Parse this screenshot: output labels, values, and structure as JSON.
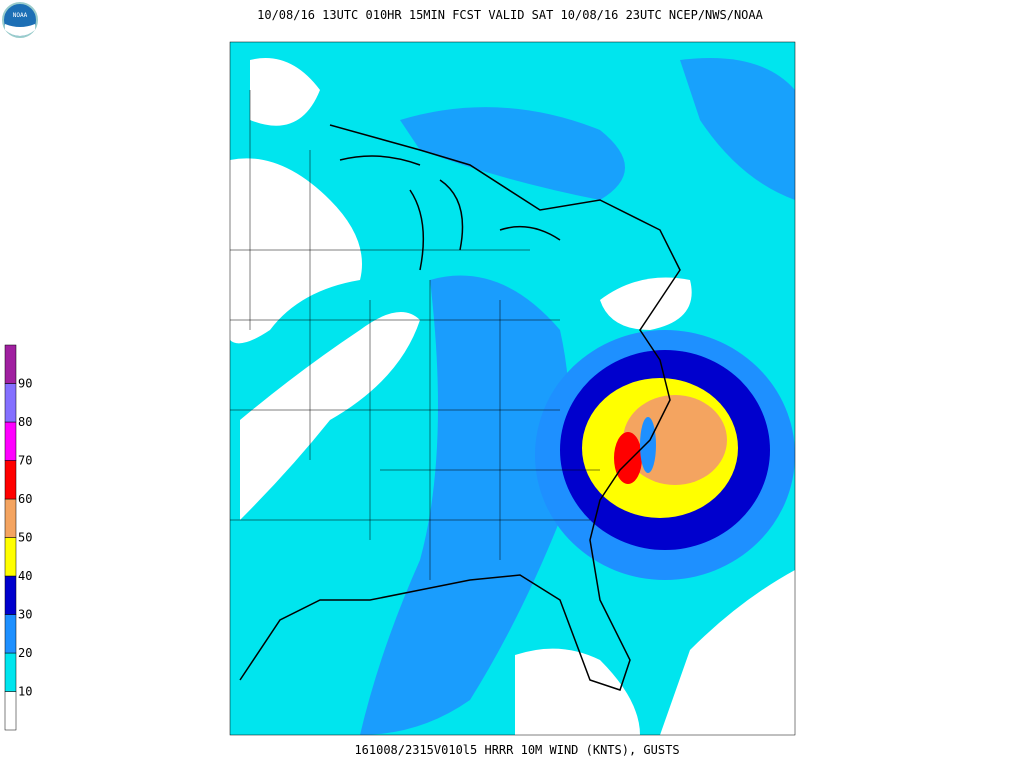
{
  "header": {
    "title": "10/08/16 13UTC  010HR 15MIN FCST VALID SAT 10/08/16 23UTC  NCEP/NWS/NOAA",
    "logo": "NOAA"
  },
  "footer": {
    "caption": "161008/2315V010l5 HRRR 10M WIND (KNTS), GUSTS"
  },
  "colorbar": {
    "colors": [
      "#ffffff",
      "#00e5ee",
      "#1e90ff",
      "#0000cd",
      "#ffff00",
      "#f4a460",
      "#ff0000",
      "#ff00ff",
      "#8470ff",
      "#a020a0"
    ],
    "labels": [
      "10",
      "20",
      "30",
      "40",
      "50",
      "60",
      "70",
      "80",
      "90"
    ]
  }
}
